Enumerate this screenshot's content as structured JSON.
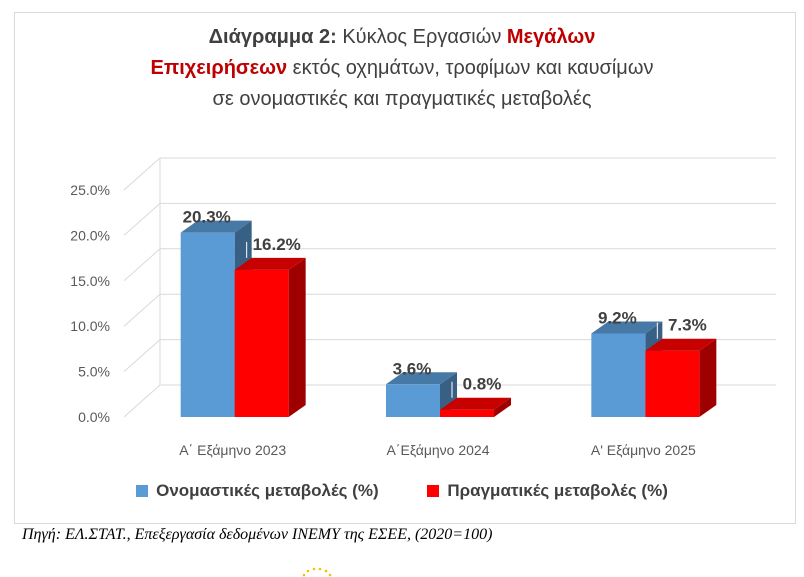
{
  "title": {
    "bold_prefix": "Διάγραμμα 2:",
    "part1": " Κύκλος Εργασιών ",
    "red1": "Μεγάλων",
    "red2": "Επιχειρήσεων",
    "part2": " εκτός οχημάτων, τροφίμων και καυσίμων",
    "line3": "σε ονομαστικές και πραγματικές μεταβολές"
  },
  "source": "Πηγή: ΕΛ.ΣΤΑΤ., Επεξεργασία δεδομένων ΙΝΕΜΥ της ΕΣΕΕ, (2020=100)",
  "chart_data": {
    "type": "bar",
    "categories": [
      "Α΄ Εξάμηνο 2023",
      "Α΄Εξάμηνο 2024",
      "Α' Εξάμηνο 2025"
    ],
    "series": [
      {
        "name": "Ονομαστικές μεταβολές (%)",
        "values": [
          20.3,
          3.6,
          9.2
        ],
        "labels": [
          "20.3%",
          "3.6%",
          "9.2%"
        ],
        "color": "#5b9bd5"
      },
      {
        "name": "Πραγματικές μεταβολές (%)",
        "values": [
          16.2,
          0.8,
          7.3
        ],
        "labels": [
          "16.2%",
          "0.8%",
          "7.3%"
        ],
        "color": "#ff0000"
      }
    ],
    "ylim": [
      0,
      25
    ],
    "yticks": [
      "0.0%",
      "5.0%",
      "10.0%",
      "15.0%",
      "20.0%",
      "25.0%"
    ],
    "grid": true,
    "legend": "bottom",
    "style": "3d-clustered-bar"
  }
}
